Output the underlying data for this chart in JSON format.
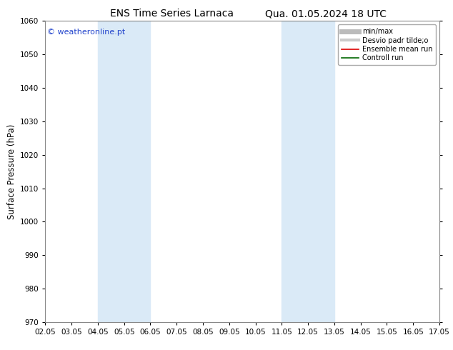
{
  "title_left": "ENS Time Series Larnaca",
  "title_right": "Qua. 01.05.2024 18 UTC",
  "ylabel": "Surface Pressure (hPa)",
  "ylim": [
    970,
    1060
  ],
  "yticks": [
    970,
    980,
    990,
    1000,
    1010,
    1020,
    1030,
    1040,
    1050,
    1060
  ],
  "xtick_labels": [
    "02.05",
    "03.05",
    "04.05",
    "05.05",
    "06.05",
    "07.05",
    "08.05",
    "09.05",
    "10.05",
    "11.05",
    "12.05",
    "13.05",
    "14.05",
    "15.05",
    "16.05",
    "17.05"
  ],
  "xtick_positions": [
    0,
    1,
    2,
    3,
    4,
    5,
    6,
    7,
    8,
    9,
    10,
    11,
    12,
    13,
    14,
    15
  ],
  "shaded_bands": [
    {
      "xmin": 2,
      "xmax": 4,
      "color": "#daeaf7"
    },
    {
      "xmin": 9,
      "xmax": 11,
      "color": "#daeaf7"
    }
  ],
  "watermark": "© weatheronline.pt",
  "watermark_color": "#2244cc",
  "legend_entries": [
    {
      "label": "min/max",
      "color": "#bbbbbb",
      "lw": 5
    },
    {
      "label": "Desvio padr tilde;o",
      "color": "#cccccc",
      "lw": 3
    },
    {
      "label": "Ensemble mean run",
      "color": "#dd0000",
      "lw": 1.2
    },
    {
      "label": "Controll run",
      "color": "#006600",
      "lw": 1.2
    }
  ],
  "bg_color": "#ffffff",
  "plot_bg_color": "#ffffff",
  "spine_color": "#888888",
  "title_fontsize": 10,
  "tick_fontsize": 7.5,
  "ylabel_fontsize": 8.5,
  "watermark_fontsize": 8
}
